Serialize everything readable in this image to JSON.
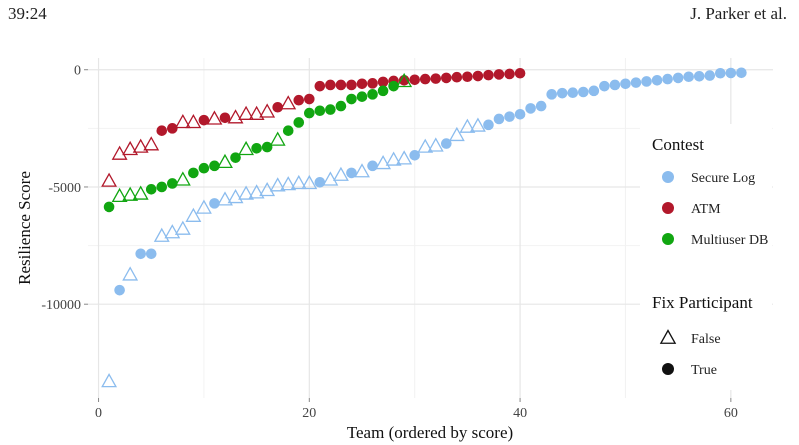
{
  "header": {
    "page_label": "39:24",
    "authors": "J. Parker et al."
  },
  "chart_data": {
    "type": "scatter",
    "title": "",
    "xlabel": "Team (ordered by score)",
    "ylabel": "Resilience Score",
    "xlim": [
      -1,
      64
    ],
    "ylim": [
      -14000,
      500
    ],
    "xticks": [
      0,
      20,
      40,
      60
    ],
    "yticks": [
      0,
      -5000,
      -10000
    ],
    "ytick_labels": [
      "0",
      "-5000",
      "-10000"
    ],
    "grid": true,
    "legend_position": "right",
    "legend_color_title": "Contest",
    "legend_shape_title": "Fix Participant",
    "shape_legend": [
      {
        "label": "False",
        "shape": "triangle"
      },
      {
        "label": "True",
        "shape": "circle"
      }
    ],
    "series": [
      {
        "name": "Secure Log",
        "color": "#8BBCEE",
        "x": [
          1,
          2,
          3,
          4,
          5,
          6,
          7,
          8,
          9,
          10,
          11,
          12,
          13,
          14,
          15,
          16,
          17,
          18,
          19,
          20,
          21,
          22,
          23,
          24,
          25,
          26,
          27,
          28,
          29,
          30,
          31,
          32,
          33,
          34,
          35,
          36,
          37,
          38,
          39,
          40,
          41,
          42,
          43,
          44,
          45,
          46,
          47,
          48,
          49,
          50,
          51,
          52,
          53,
          54,
          55,
          56,
          57,
          58,
          59,
          60,
          61
        ],
        "y": [
          -13300,
          -9400,
          -8750,
          -7850,
          -7850,
          -7100,
          -6950,
          -6800,
          -6250,
          -5900,
          -5700,
          -5550,
          -5450,
          -5300,
          -5250,
          -5150,
          -4950,
          -4900,
          -4850,
          -4850,
          -4800,
          -4700,
          -4500,
          -4400,
          -4350,
          -4100,
          -4000,
          -3850,
          -3800,
          -3650,
          -3300,
          -3250,
          -3150,
          -2800,
          -2450,
          -2400,
          -2350,
          -2100,
          -2000,
          -1900,
          -1650,
          -1550,
          -1050,
          -1000,
          -980,
          -950,
          -900,
          -700,
          -650,
          -600,
          -550,
          -500,
          -450,
          -400,
          -350,
          -300,
          -280,
          -250,
          -150,
          -140,
          -130
        ],
        "fix": [
          false,
          true,
          false,
          true,
          true,
          false,
          false,
          false,
          false,
          false,
          true,
          false,
          false,
          false,
          false,
          false,
          false,
          false,
          false,
          false,
          true,
          false,
          false,
          true,
          false,
          true,
          false,
          false,
          false,
          true,
          false,
          false,
          true,
          false,
          false,
          false,
          true,
          true,
          true,
          true,
          true,
          true,
          true,
          true,
          true,
          true,
          true,
          true,
          true,
          true,
          true,
          true,
          true,
          true,
          true,
          true,
          true,
          true,
          true,
          true,
          true
        ]
      },
      {
        "name": "ATM",
        "color": "#B2182B",
        "x": [
          1,
          2,
          3,
          4,
          5,
          6,
          7,
          8,
          9,
          10,
          11,
          12,
          13,
          14,
          15,
          16,
          17,
          18,
          19,
          20,
          21,
          22,
          23,
          24,
          25,
          26,
          27,
          28,
          29,
          30,
          31,
          32,
          33,
          34,
          35,
          36,
          37,
          38,
          39,
          40
        ],
        "y": [
          -4750,
          -3600,
          -3400,
          -3300,
          -3200,
          -2600,
          -2500,
          -2250,
          -2250,
          -2150,
          -2100,
          -2050,
          -2050,
          -1900,
          -1900,
          -1800,
          -1600,
          -1450,
          -1300,
          -1250,
          -700,
          -650,
          -650,
          -650,
          -600,
          -580,
          -520,
          -480,
          -450,
          -430,
          -400,
          -380,
          -350,
          -320,
          -300,
          -270,
          -230,
          -200,
          -180,
          -150
        ],
        "fix": [
          false,
          false,
          false,
          false,
          false,
          true,
          true,
          false,
          false,
          true,
          false,
          true,
          false,
          false,
          false,
          false,
          true,
          false,
          true,
          true,
          true,
          true,
          true,
          true,
          true,
          true,
          true,
          true,
          true,
          true,
          true,
          true,
          true,
          true,
          true,
          true,
          true,
          true,
          true,
          true
        ]
      },
      {
        "name": "Multiuser DB",
        "color": "#11A611",
        "x": [
          1,
          2,
          3,
          4,
          5,
          6,
          7,
          8,
          9,
          10,
          11,
          12,
          13,
          14,
          15,
          16,
          17,
          18,
          19,
          20,
          21,
          22,
          23,
          24,
          25,
          26,
          27,
          28,
          29
        ],
        "y": [
          -5850,
          -5400,
          -5350,
          -5300,
          -5100,
          -5000,
          -4850,
          -4700,
          -4400,
          -4200,
          -4100,
          -3950,
          -3750,
          -3400,
          -3350,
          -3300,
          -3000,
          -2600,
          -2250,
          -1850,
          -1750,
          -1700,
          -1550,
          -1250,
          -1150,
          -1050,
          -900,
          -700,
          -500
        ],
        "fix": [
          true,
          false,
          false,
          false,
          true,
          true,
          true,
          false,
          true,
          true,
          true,
          false,
          true,
          false,
          true,
          true,
          false,
          true,
          true,
          true,
          true,
          true,
          true,
          true,
          true,
          true,
          true,
          true,
          false
        ]
      }
    ]
  }
}
